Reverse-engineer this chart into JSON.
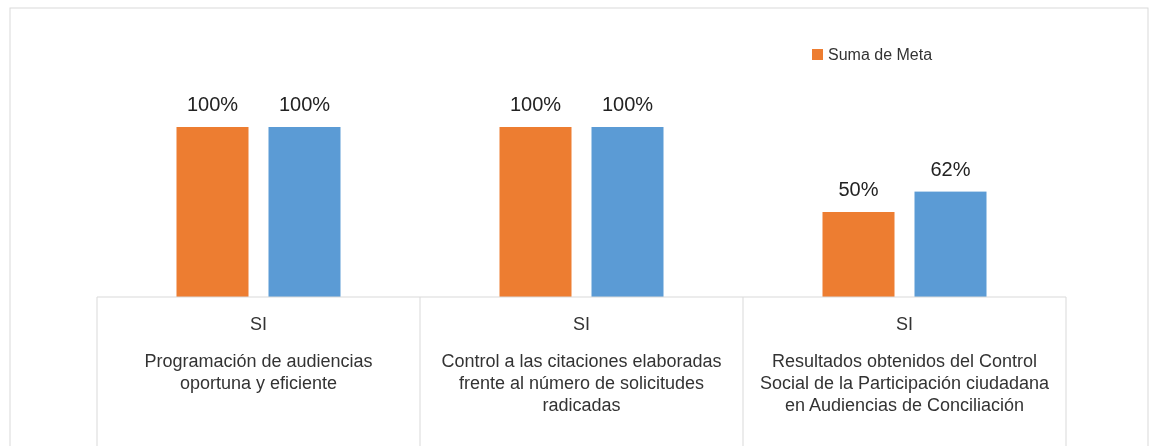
{
  "chart_data": {
    "type": "bar",
    "categories": [
      "Programación de audiencias oportuna y eficiente",
      "Control a las citaciones elaboradas frente al número de solicitudes radicadas",
      "Resultados obtenidos del Control Social de la Participación ciudadana en Audiencias de Conciliación"
    ],
    "series": [
      {
        "name": "Suma de Meta",
        "color": "#ed7d31",
        "values": [
          100,
          100,
          50
        ],
        "value_labels": [
          "100%",
          "100%",
          "50%"
        ]
      },
      {
        "color": "#5b9bd5",
        "values": [
          100,
          100,
          62
        ],
        "value_labels": [
          "100%",
          "100%",
          "62%"
        ]
      }
    ],
    "annotations": [
      "SI",
      "SI",
      "SI"
    ],
    "legend": "top right"
  }
}
